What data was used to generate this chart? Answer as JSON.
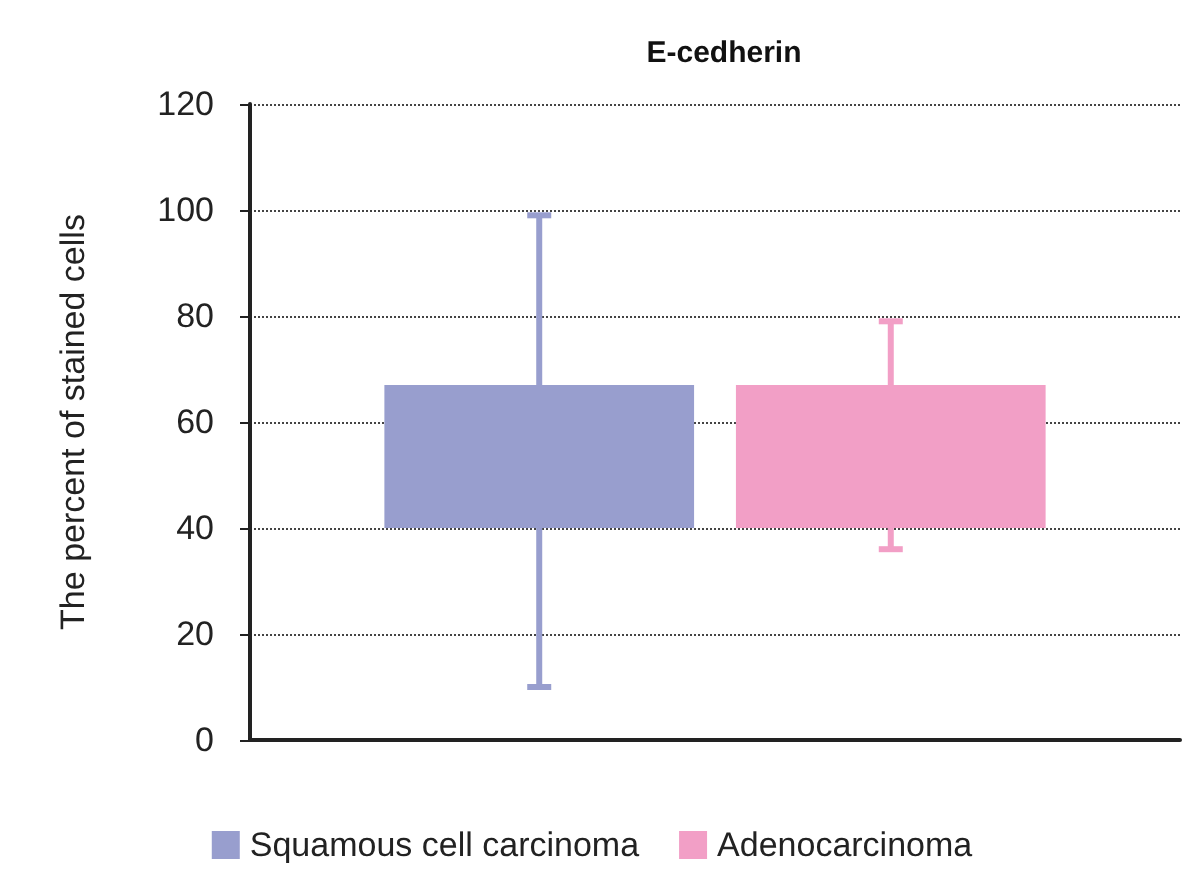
{
  "chart_data": {
    "type": "bar",
    "title": "E-cedherin",
    "ylabel": "The percent of stained cells",
    "categories": [
      null
    ],
    "series": [
      {
        "name": "Squamous cell carcinoma",
        "color": "#989ece",
        "values": [
          27
        ],
        "base": [
          40
        ],
        "errors": [
          [
            10,
            99
          ]
        ]
      },
      {
        "name": "Adenocarcinoma",
        "color": "#f29fc6",
        "values": [
          27
        ],
        "base": [
          40
        ],
        "errors": [
          [
            36,
            79
          ]
        ]
      }
    ],
    "ylim": [
      0,
      120
    ],
    "yticks": [
      0,
      20,
      40,
      60,
      80,
      100,
      120
    ],
    "grid": "y",
    "legend": "bottom"
  }
}
